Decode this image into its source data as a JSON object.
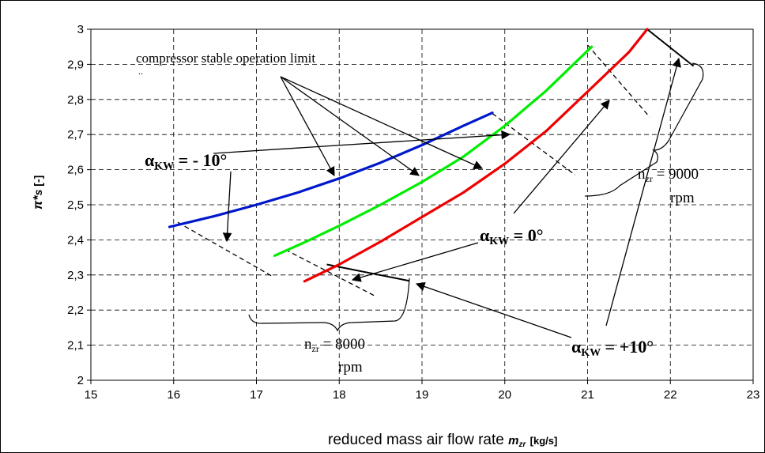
{
  "chart_data": {
    "type": "line",
    "title": "",
    "xlabel_main": "reduced mass air flow rate",
    "xlabel_sym": "m",
    "xlabel_sub": "zr",
    "xlabel_unit": "[kg/s]",
    "ylabel_sym": "π*",
    "ylabel_sub": "s",
    "ylabel_unit": "[-]",
    "xlim": [
      15,
      23
    ],
    "ylim": [
      2,
      3
    ],
    "x_ticks": [
      "15",
      "16",
      "17",
      "18",
      "19",
      "20",
      "21",
      "22",
      "23"
    ],
    "y_ticks": [
      "2",
      "2,1",
      "2,2",
      "2,3",
      "2,4",
      "2,5",
      "2,6",
      "2,7",
      "2,8",
      "2,9",
      "3"
    ],
    "grid": true,
    "series": [
      {
        "color": "#0018cc",
        "x": [
          15.95,
          16.5,
          17,
          17.5,
          18,
          18.5,
          19,
          19.5,
          19.85
        ],
        "y": [
          2.437,
          2.468,
          2.5,
          2.535,
          2.575,
          2.62,
          2.67,
          2.725,
          2.762
        ]
      },
      {
        "color": "#00ee00",
        "x": [
          17.22,
          17.6,
          18,
          18.5,
          19,
          19.5,
          20,
          20.5,
          21.05
        ],
        "y": [
          2.355,
          2.395,
          2.44,
          2.5,
          2.565,
          2.637,
          2.725,
          2.825,
          2.95
        ]
      },
      {
        "color": "#ee0000",
        "x": [
          17.58,
          18,
          18.5,
          19,
          19.5,
          20,
          20.5,
          21,
          21.5,
          21.72
        ],
        "y": [
          2.282,
          2.33,
          2.395,
          2.465,
          2.535,
          2.617,
          2.71,
          2.822,
          2.935,
          3.0
        ]
      }
    ],
    "constant_speed_lines": [
      {
        "style": "dashed",
        "x": [
          16.05,
          17.2
        ],
        "y": [
          2.45,
          2.295
        ]
      },
      {
        "style": "dashed",
        "x": [
          17.35,
          18.45
        ],
        "y": [
          2.372,
          2.238
        ]
      },
      {
        "style": "dashed",
        "x": [
          19.85,
          20.85
        ],
        "y": [
          2.76,
          2.585
        ]
      },
      {
        "style": "dashed",
        "x": [
          21.0,
          21.75
        ],
        "y": [
          2.955,
          2.75
        ]
      },
      {
        "style": "solid",
        "x": [
          17.85,
          18.85
        ],
        "y": [
          2.33,
          2.283
        ]
      },
      {
        "style": "solid",
        "x": [
          21.72,
          22.28
        ],
        "y": [
          3.0,
          2.895
        ]
      }
    ],
    "annotations": {
      "stability_limit": "compressor stable operation limit",
      "alpha_minus10": "αKW = - 10°",
      "alpha_0": "αKW = 0°",
      "alpha_plus10": "αKW = +10°",
      "n8000_line1": "nzr = 8000",
      "n8000_line2": "rpm",
      "n9000_line1": "nzr = 9000",
      "n9000_line2": "rpm",
      "alpha_sym": "α",
      "alpha_sub": "KW",
      "alpha_minus10_val": " = - 10°",
      "alpha_0_val": " = 0°",
      "alpha_plus10_val": " = +10°",
      "n_sym": "n",
      "n_sub": "zr",
      "n8000_val": " = 8000",
      "n9000_val": " = 9000",
      "rpm": "rpm"
    }
  }
}
